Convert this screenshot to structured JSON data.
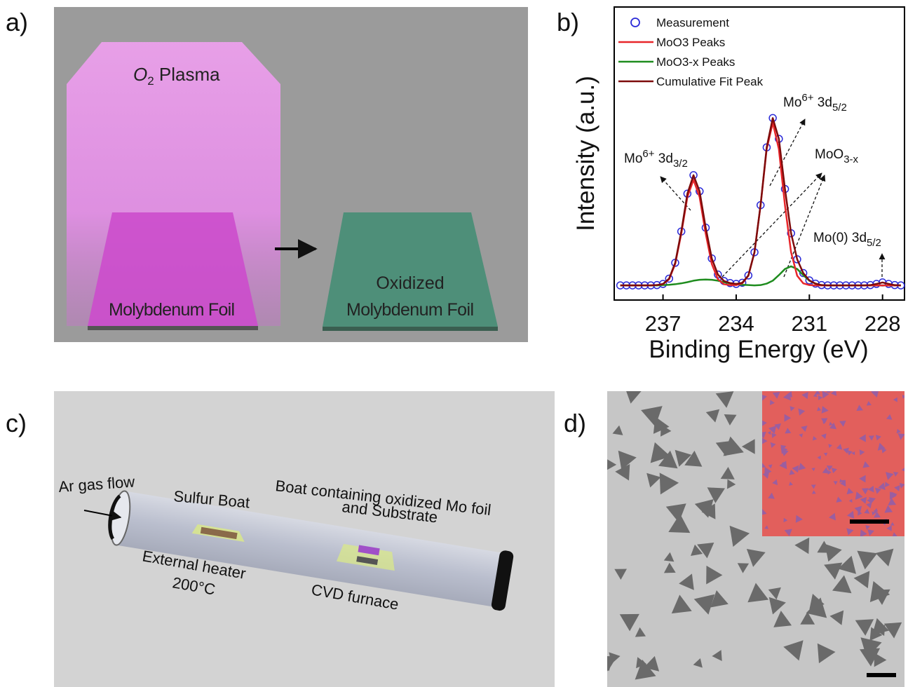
{
  "panel_labels": [
    "a)",
    "b)",
    "c)",
    "d)"
  ],
  "panel_a": {
    "plasma_label": {
      "symbol": "O",
      "subscript": "2",
      "text": " Plasma"
    },
    "foil_label": "Molybdenum Foil",
    "oxidized_label": [
      "Oxidized",
      "Molybdenum Foil"
    ]
  },
  "chart_data": {
    "type": "line",
    "x_label": "Binding Energy (eV)",
    "y_label": "Intensity (a.u.)",
    "x": [
      238.75,
      238.5,
      238.25,
      238,
      237.75,
      237.5,
      237.25,
      237,
      236.75,
      236.5,
      236.25,
      236,
      235.75,
      235.5,
      235.25,
      235,
      234.75,
      234.5,
      234.25,
      234,
      233.75,
      233.5,
      233.25,
      233,
      232.75,
      232.5,
      232.25,
      232,
      231.75,
      231.5,
      231.25,
      231,
      230.75,
      230.5,
      230.25,
      230,
      229.75,
      229.5,
      229.25,
      229,
      228.75,
      228.5,
      228.25,
      228,
      227.75,
      227.5,
      227.25
    ],
    "series": [
      {
        "name": "Measurement",
        "color": "#2a2ad8",
        "marker": "circle",
        "values": [
          0.05,
          0.05,
          0.05,
          0.05,
          0.05,
          0.05,
          0.051,
          0.055,
          0.073,
          0.127,
          0.234,
          0.363,
          0.426,
          0.371,
          0.247,
          0.142,
          0.087,
          0.065,
          0.058,
          0.055,
          0.059,
          0.084,
          0.163,
          0.324,
          0.521,
          0.621,
          0.55,
          0.379,
          0.228,
          0.139,
          0.092,
          0.067,
          0.056,
          0.051,
          0.05,
          0.05,
          0.05,
          0.05,
          0.05,
          0.05,
          0.05,
          0.051,
          0.055,
          0.06,
          0.055,
          0.051,
          0.05
        ]
      },
      {
        "name": "MoO3 Peaks",
        "color": "#e8262a",
        "values": [
          0.05,
          0.05,
          0.05,
          0.05,
          0.05,
          0.05,
          0.051,
          0.054,
          0.071,
          0.123,
          0.227,
          0.352,
          0.41,
          0.352,
          0.227,
          0.123,
          0.071,
          0.054,
          0.051,
          0.051,
          0.057,
          0.083,
          0.163,
          0.323,
          0.515,
          0.605,
          0.515,
          0.323,
          0.163,
          0.083,
          0.057,
          0.051,
          0.05,
          0.05,
          0.05,
          0.05,
          0.05,
          0.05,
          0.05,
          0.05,
          0.05,
          0.05,
          0.05,
          0.05,
          0.05,
          0.05,
          0.05
        ]
      },
      {
        "name": "MoO3-x Peaks",
        "color": "#1e8c1e",
        "values": [
          0.05,
          0.05,
          0.05,
          0.05,
          0.05,
          0.05,
          0.05,
          0.051,
          0.052,
          0.054,
          0.057,
          0.061,
          0.066,
          0.069,
          0.07,
          0.069,
          0.066,
          0.061,
          0.057,
          0.054,
          0.052,
          0.051,
          0.05,
          0.051,
          0.056,
          0.066,
          0.085,
          0.106,
          0.115,
          0.106,
          0.085,
          0.066,
          0.056,
          0.051,
          0.05,
          0.05,
          0.05,
          0.05,
          0.05,
          0.05,
          0.05,
          0.05,
          0.05,
          0.05,
          0.05,
          0.05,
          0.05
        ]
      },
      {
        "name": "Cumulative Fit Peak",
        "color": "#7d0b0b",
        "values": [
          0.05,
          0.05,
          0.05,
          0.05,
          0.05,
          0.05,
          0.051,
          0.055,
          0.073,
          0.127,
          0.234,
          0.363,
          0.426,
          0.371,
          0.247,
          0.142,
          0.087,
          0.065,
          0.058,
          0.055,
          0.059,
          0.084,
          0.163,
          0.324,
          0.521,
          0.621,
          0.55,
          0.379,
          0.228,
          0.139,
          0.092,
          0.067,
          0.056,
          0.051,
          0.05,
          0.05,
          0.05,
          0.05,
          0.05,
          0.05,
          0.05,
          0.051,
          0.055,
          0.06,
          0.055,
          0.051,
          0.05
        ]
      }
    ],
    "xlim": [
      239,
      227.1
    ],
    "xticks": [
      237,
      234,
      231,
      228
    ],
    "ylim": [
      0,
      1
    ],
    "legend": "upper left",
    "annotations": [
      [
        {
          "text": "Mo"
        },
        {
          "sup": "6+"
        },
        {
          "text": " 3d"
        },
        {
          "sub": "3/2"
        }
      ],
      [
        {
          "text": "Mo"
        },
        {
          "sup": "6+"
        },
        {
          "text": " 3d"
        },
        {
          "sub": "5/2"
        }
      ],
      [
        {
          "text": "MoO"
        },
        {
          "sub": "3-x"
        }
      ],
      [
        {
          "text": "Mo(0) 3d"
        },
        {
          "sub": "5/2"
        }
      ]
    ]
  },
  "panel_c": {
    "gas_label": "Ar gas flow",
    "sulfur_label": "Sulfur Boat",
    "boat_label": [
      "Boat containing oxidized Mo foil",
      "and Substrate"
    ],
    "heater_label": [
      "External heater",
      "200°C"
    ],
    "furnace_label": "CVD furnace"
  }
}
